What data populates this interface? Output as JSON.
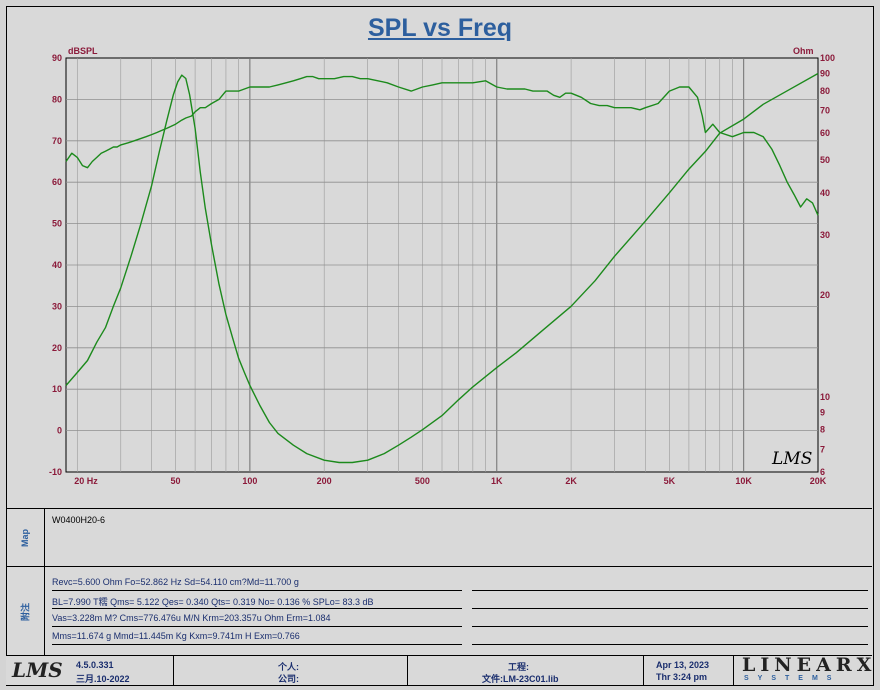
{
  "title": "SPL vs Freq",
  "chart_data": {
    "type": "line",
    "title": "SPL vs Freq",
    "xscale": "log",
    "xlim": [
      18,
      20000
    ],
    "x_ticks": [
      20,
      50,
      100,
      200,
      500,
      1000,
      2000,
      5000,
      10000,
      20000
    ],
    "x_tick_labels": [
      "20 Hz",
      "50",
      "100",
      "200",
      "500",
      "1K",
      "2K",
      "5K",
      "10K",
      "20K"
    ],
    "left_axis": {
      "label": "dBSPL",
      "ylim": [
        -10,
        90
      ],
      "ticks": [
        90,
        80,
        70,
        60,
        50,
        40,
        30,
        20,
        10,
        0,
        -10
      ]
    },
    "right_axis": {
      "label": "Ohm",
      "scale": "log",
      "ylim": [
        6,
        100
      ],
      "ticks": [
        100,
        90,
        80,
        70,
        60,
        50,
        40,
        30,
        20,
        10,
        9,
        8,
        7,
        6
      ]
    },
    "grid": true,
    "series": [
      {
        "axis": "left",
        "color": "#1c8a1c",
        "x": [
          18,
          19,
          20,
          21,
          22,
          23,
          24,
          25,
          26,
          27,
          28,
          29,
          30,
          32,
          34,
          36,
          38,
          40,
          42,
          44,
          46,
          48,
          50,
          53,
          55,
          58,
          60,
          63,
          66,
          70,
          75,
          80,
          85,
          90,
          95,
          100,
          110,
          120,
          130,
          140,
          150,
          160,
          170,
          180,
          190,
          200,
          220,
          240,
          260,
          280,
          300,
          330,
          360,
          400,
          450,
          500,
          550,
          600,
          650,
          700,
          800,
          900,
          1000,
          1100,
          1200,
          1300,
          1400,
          1500,
          1600,
          1700,
          1800,
          1900,
          2000,
          2200,
          2400,
          2600,
          2800,
          3000,
          3200,
          3500,
          3800,
          4000,
          4500,
          5000,
          5500,
          6000,
          6500,
          6800,
          7000,
          7500,
          8000,
          9000,
          10000,
          11000,
          12000,
          13000,
          14000,
          15000,
          16000,
          17000,
          18000,
          19000,
          20000
        ],
        "y": [
          65,
          67,
          66,
          64,
          63.5,
          65,
          66,
          67,
          67.5,
          68,
          68.5,
          68.5,
          69,
          69.5,
          70,
          70.5,
          71,
          71.5,
          72,
          72.5,
          73,
          73.5,
          74,
          75,
          75.5,
          76,
          77,
          78,
          78,
          79,
          80,
          82,
          82,
          82,
          82.5,
          83,
          83,
          83,
          83.5,
          84,
          84.5,
          85,
          85.5,
          85.5,
          85,
          85,
          85,
          85.5,
          85.5,
          85,
          85,
          84.5,
          84,
          83,
          82,
          83,
          83.5,
          84,
          84,
          84,
          84,
          84.5,
          83,
          82.5,
          82.5,
          82.5,
          82,
          82,
          82,
          81,
          80.5,
          81.5,
          81.5,
          80.5,
          79,
          78.5,
          78.5,
          78,
          78,
          78,
          77.5,
          78,
          79,
          82,
          83,
          83,
          80.5,
          76,
          72,
          74,
          72,
          71,
          72,
          72,
          71,
          68,
          64,
          60,
          57,
          54,
          56,
          55,
          52
        ]
      },
      {
        "axis": "right",
        "color": "#1c8a1c",
        "x": [
          18,
          20,
          22,
          24,
          26,
          28,
          30,
          33,
          36,
          40,
          43,
          46,
          49,
          51,
          53,
          55,
          57,
          60,
          63,
          66,
          70,
          75,
          80,
          85,
          90,
          95,
          100,
          110,
          120,
          130,
          150,
          170,
          200,
          230,
          260,
          300,
          350,
          400,
          450,
          500,
          600,
          700,
          800,
          1000,
          1200,
          1500,
          2000,
          2500,
          3000,
          4000,
          5000,
          6000,
          7000,
          8000,
          10000,
          12000,
          15000,
          20000
        ],
        "y": [
          10.8,
          11.8,
          12.8,
          14.5,
          16,
          18.5,
          21,
          26,
          32,
          42,
          53,
          65,
          78,
          85,
          89,
          87,
          78,
          62,
          46,
          36,
          28,
          21.5,
          17.5,
          15,
          13,
          11.8,
          10.8,
          9.4,
          8.4,
          7.8,
          7.2,
          6.8,
          6.5,
          6.4,
          6.4,
          6.5,
          6.8,
          7.2,
          7.6,
          8,
          8.8,
          9.8,
          10.7,
          12.2,
          13.5,
          15.5,
          18.5,
          22,
          26,
          33,
          40,
          47,
          53,
          60,
          66,
          73,
          80,
          90
        ]
      }
    ]
  },
  "labels": {
    "map": "Map",
    "notes": "附注"
  },
  "map_value": "W0400H20-6",
  "params": [
    "Revc=5.600 Ohm  Fo=52.862 Hz  Sd=54.110 cm?Md=11.700 g",
    "BL=7.990 T糯  Qms= 5.122  Qes= 0.340  Qts= 0.319  No= 0.136 %  SPLo= 83.3 dB",
    "Vas=3.228m M? Cms=776.476u M/N  Krm=203.357u Ohm  Erm=1.084",
    "Mms=11.674 g  Mmd=11.445m Kg  Kxm=9.741m H  Exm=0.766"
  ],
  "footer": {
    "logo_left": "LMS",
    "version": "4.5.0.331",
    "version_date": "三月.10-2022",
    "person_label": "个人:",
    "company_label": "公司:",
    "project_label": "工程:",
    "file_label": "文件:LM-23C01.lib",
    "date": "Apr 13, 2023",
    "time": "Thr  3:24 pm",
    "brand": "LINEARX",
    "brand_sub": "SYSTEMS"
  },
  "watermark": "LMS"
}
